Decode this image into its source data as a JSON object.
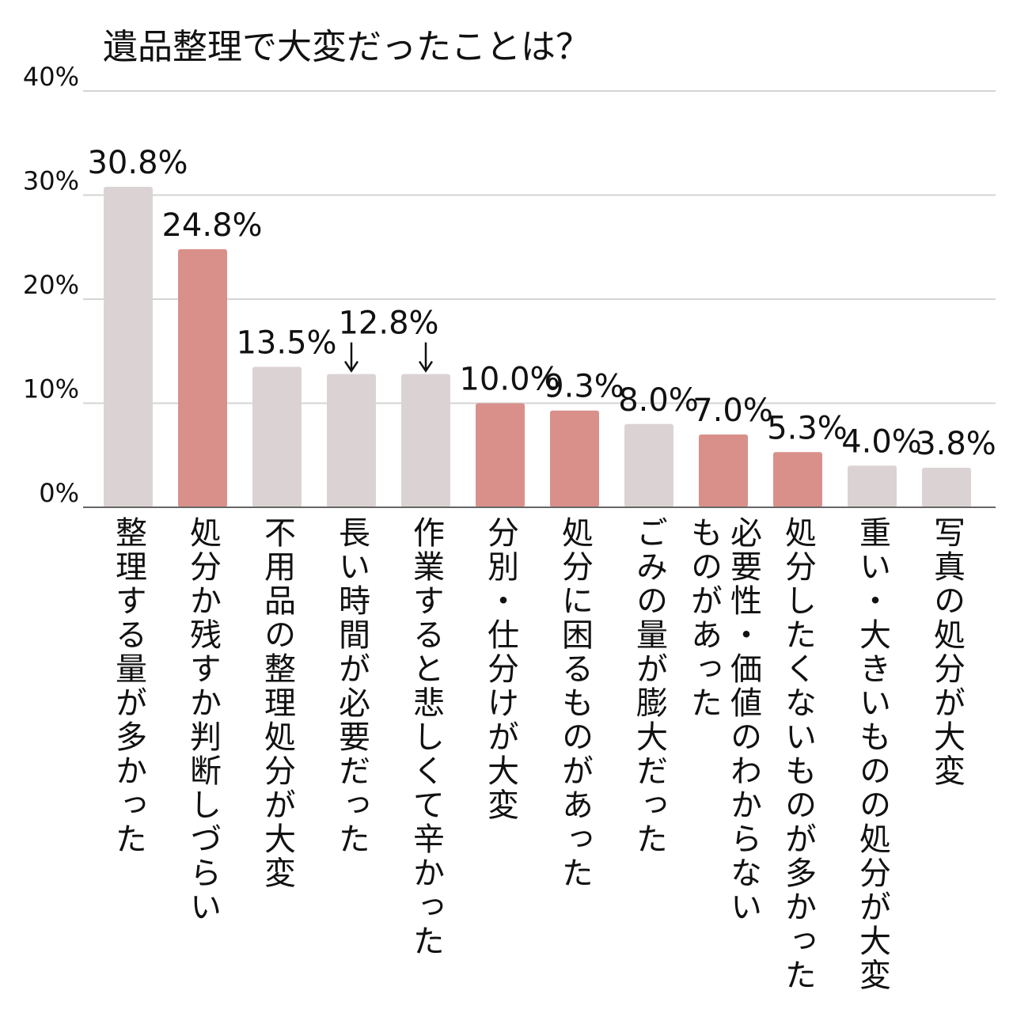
{
  "chart_data": {
    "type": "bar",
    "title": "遺品整理で大変だったことは？",
    "categories": [
      "整理する量が多かった",
      "処分か残すか判断しづらい",
      "不用品の整理処分が大変",
      "長い時間が必要だった",
      "作業すると悲しくて辛かった",
      "分別・仕分けが大変",
      "処分に困るものがあった",
      "ごみの量が膨大だった",
      "必要性・価値のわからない\nものがあった",
      "処分したくないものが多かった",
      "重い・大きいものの処分が大変",
      "写真の処分が大変"
    ],
    "values": [
      30.8,
      24.8,
      13.5,
      12.8,
      12.8,
      10.0,
      9.3,
      8.0,
      7.0,
      5.3,
      4.0,
      3.8
    ],
    "value_labels": [
      "30.8%",
      "24.8%",
      "13.5%",
      "12.8%",
      null,
      "10.0%",
      "9.3%",
      "8.0%",
      "7.0%",
      "5.3%",
      "4.0%",
      "3.8%"
    ],
    "colors": [
      "#dbd3d3",
      "#d9908a",
      "#dbd3d3",
      "#dbd3d3",
      "#dbd3d3",
      "#d9908a",
      "#d9908a",
      "#dbd3d3",
      "#d9908a",
      "#d9908a",
      "#dbd3d3",
      "#dbd3d3"
    ],
    "ylim": [
      0,
      40
    ],
    "yticks": [
      {
        "value": 0,
        "label": "0%"
      },
      {
        "value": 10,
        "label": "10%"
      },
      {
        "value": 20,
        "label": "20%"
      },
      {
        "value": 30,
        "label": "30%"
      },
      {
        "value": 40,
        "label": "40%"
      }
    ],
    "grid": true
  }
}
